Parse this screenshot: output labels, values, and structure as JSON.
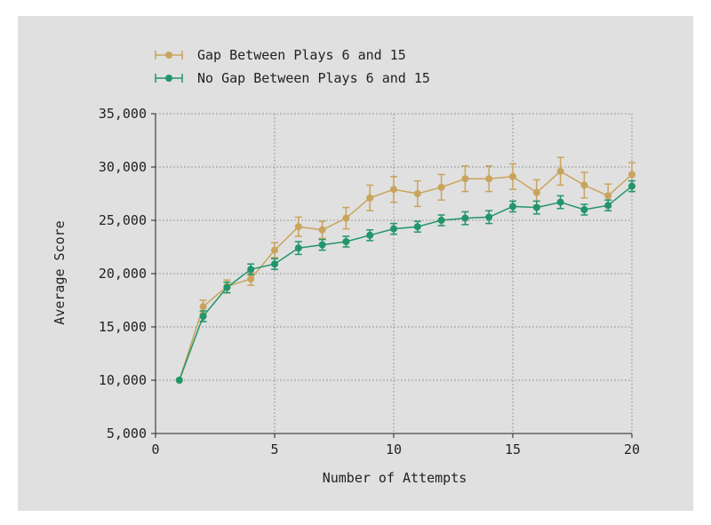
{
  "chart_data": {
    "type": "line",
    "xlabel": "Number of Attempts",
    "ylabel": "Average Score",
    "xlim": [
      0,
      20
    ],
    "ylim": [
      5000,
      35000
    ],
    "xticks": [
      0,
      5,
      10,
      15,
      20
    ],
    "yticks": [
      5000,
      10000,
      15000,
      20000,
      25000,
      30000,
      35000
    ],
    "xtick_labels": [
      "0",
      "5",
      "10",
      "15",
      "20"
    ],
    "ytick_labels": [
      "5,000",
      "10,000",
      "15,000",
      "20,000",
      "25,000",
      "30,000",
      "35,000"
    ],
    "grid": true,
    "legend_position": "top-left",
    "series": [
      {
        "name": "Gap Between Plays 6 and 15",
        "color": "#c9a45c",
        "x": [
          1,
          2,
          3,
          4,
          5,
          6,
          7,
          8,
          9,
          10,
          11,
          12,
          13,
          14,
          15,
          16,
          17,
          18,
          19,
          20
        ],
        "values": [
          10000,
          16900,
          18800,
          19500,
          22200,
          24400,
          24100,
          25200,
          27100,
          27900,
          27500,
          28100,
          28900,
          28900,
          29100,
          27600,
          29600,
          28300,
          27300,
          29300
        ],
        "errors": [
          0,
          600,
          600,
          600,
          700,
          900,
          800,
          1000,
          1200,
          1200,
          1200,
          1200,
          1200,
          1200,
          1200,
          1200,
          1300,
          1200,
          1100,
          1100
        ]
      },
      {
        "name": "No Gap Between Plays 6 and 15",
        "color": "#22956a",
        "x": [
          1,
          2,
          3,
          4,
          5,
          6,
          7,
          8,
          9,
          10,
          11,
          12,
          13,
          14,
          15,
          16,
          17,
          18,
          19,
          20
        ],
        "values": [
          10000,
          16000,
          18700,
          20400,
          20900,
          22400,
          22700,
          23000,
          23600,
          24200,
          24400,
          25000,
          25200,
          25300,
          26300,
          26200,
          26700,
          26000,
          26400,
          28200
        ],
        "errors": [
          0,
          500,
          500,
          500,
          500,
          600,
          500,
          500,
          500,
          500,
          500,
          500,
          600,
          600,
          500,
          600,
          600,
          500,
          500,
          500
        ]
      }
    ]
  }
}
